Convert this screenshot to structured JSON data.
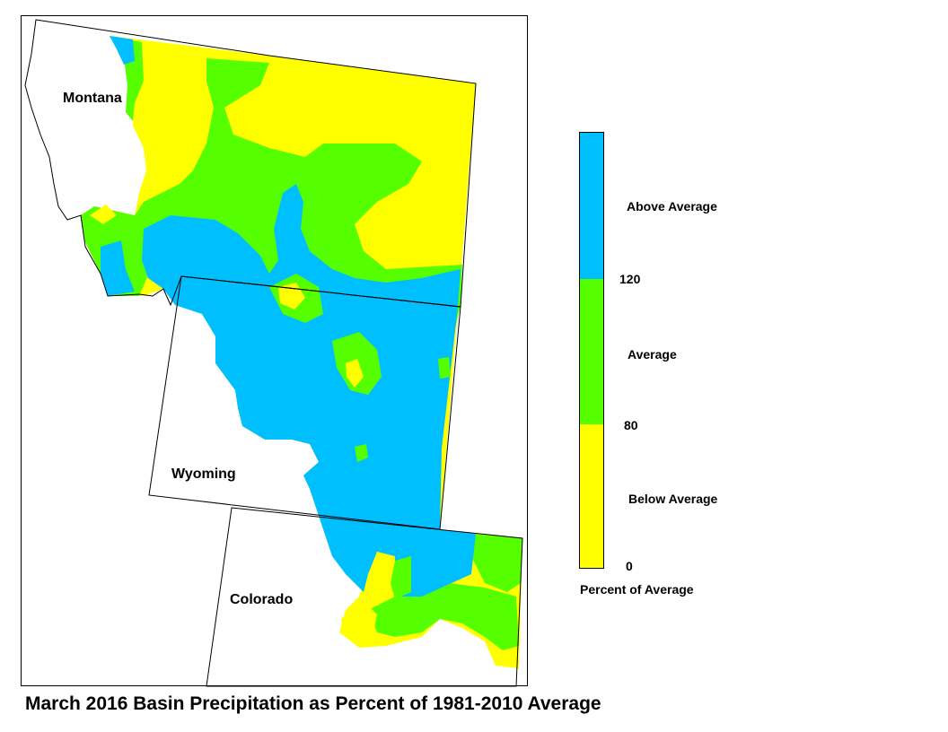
{
  "title": "March 2016 Basin Precipitation as Percent of 1981-2010 Average",
  "states": {
    "montana": "Montana",
    "wyoming": "Wyoming",
    "colorado": "Colorado"
  },
  "legend": {
    "categories": [
      {
        "label": "Above Average",
        "color": "#00bfff",
        "range": "above 120"
      },
      {
        "label": "Average",
        "color": "#55ff00",
        "range": "80-120"
      },
      {
        "label": "Below Average",
        "color": "#ffff00",
        "range": "0-80"
      }
    ],
    "breaks": [
      "120",
      "80",
      "0"
    ],
    "caption": "Percent of Average"
  }
}
